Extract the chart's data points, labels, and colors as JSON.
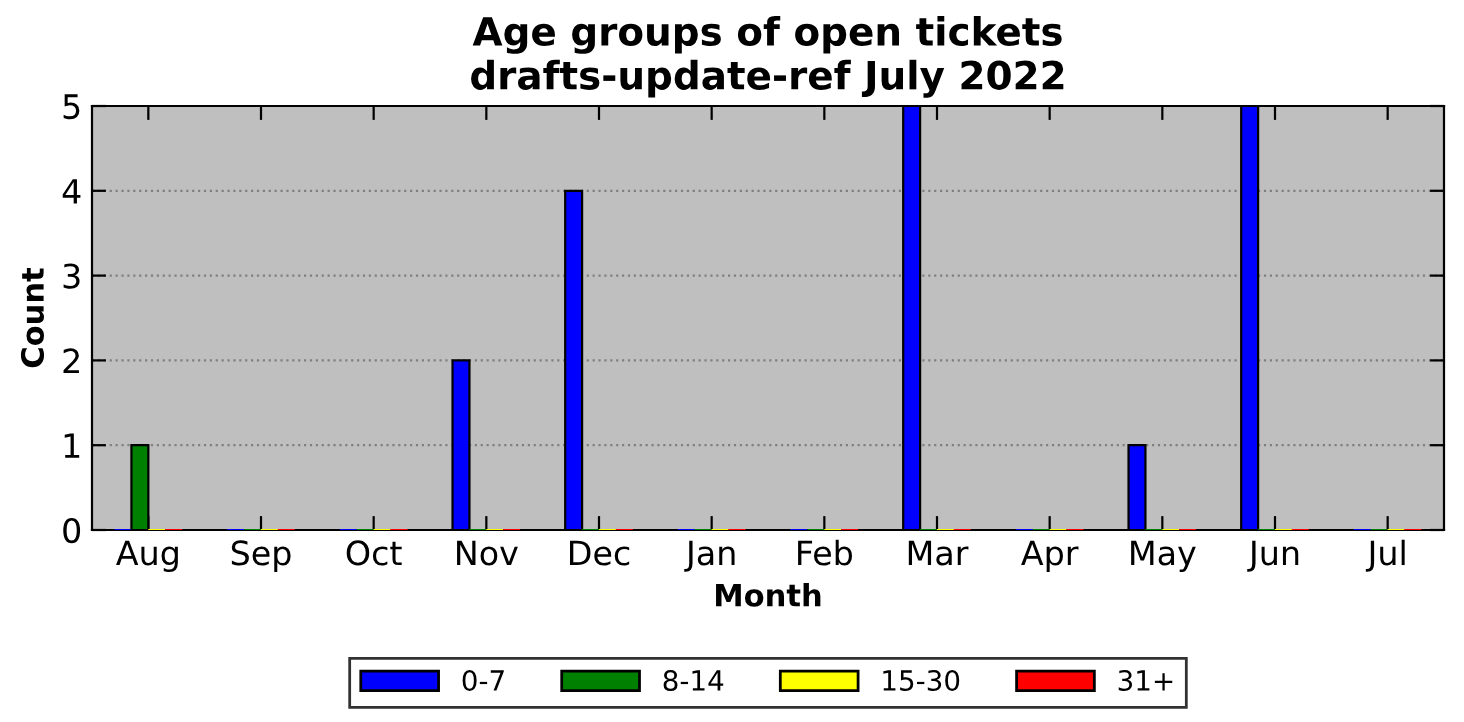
{
  "chart_data": {
    "type": "bar",
    "title": "Age groups of open tickets\ndrafts-update-ref July 2022",
    "xlabel": "Month",
    "ylabel": "Count",
    "categories": [
      "Aug",
      "Sep",
      "Oct",
      "Nov",
      "Dec",
      "Jan",
      "Feb",
      "Mar",
      "Apr",
      "May",
      "Jun",
      "Jul"
    ],
    "series": [
      {
        "name": "0-7",
        "color": "#0000ff",
        "values": [
          0,
          0,
          0,
          2,
          4,
          0,
          0,
          5,
          0,
          1,
          5,
          0
        ]
      },
      {
        "name": "8-14",
        "color": "#008000",
        "values": [
          1,
          0,
          0,
          0,
          0,
          0,
          0,
          0,
          0,
          0,
          0,
          0
        ]
      },
      {
        "name": "15-30",
        "color": "#ffff00",
        "values": [
          0,
          0,
          0,
          0,
          0,
          0,
          0,
          0,
          0,
          0,
          0,
          0
        ]
      },
      {
        "name": "31+",
        "color": "#ff0000",
        "values": [
          0,
          0,
          0,
          0,
          0,
          0,
          0,
          0,
          0,
          0,
          0,
          0
        ]
      }
    ],
    "ylim": [
      0,
      5
    ],
    "yticks": [
      0,
      1,
      2,
      3,
      4,
      5
    ],
    "grid": "y",
    "legend": "bottom"
  }
}
